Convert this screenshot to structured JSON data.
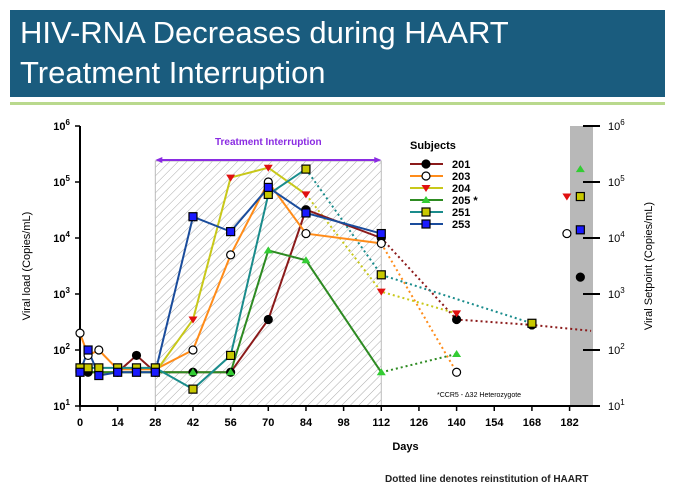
{
  "slide": {
    "title_line1": "HIV-RNA Decreases during HAART",
    "title_line2": "Treatment Interruption",
    "footnote": "Dotted line denotes reinstitution of HAART"
  },
  "chart_data": {
    "type": "line",
    "title": "",
    "xlabel": "Days",
    "ylabel": "Viral load (Copies/mL)",
    "y2label": "Viral Setpoint (Copies/mL)",
    "yscale": "log",
    "ylim": [
      10,
      1000000
    ],
    "xlim": [
      0,
      190
    ],
    "x_ticks": [
      0,
      14,
      28,
      42,
      56,
      70,
      84,
      98,
      112,
      126,
      140,
      154,
      168,
      182
    ],
    "y_ticks": [
      {
        "base": "10",
        "exp": "1"
      },
      {
        "base": "10",
        "exp": "2"
      },
      {
        "base": "10",
        "exp": "3"
      },
      {
        "base": "10",
        "exp": "4"
      },
      {
        "base": "10",
        "exp": "5"
      },
      {
        "base": "10",
        "exp": "6"
      }
    ],
    "interruption": {
      "label": "Treatment Interruption",
      "start": 28,
      "end": 112,
      "color": "#8a2be2"
    },
    "legend_title": "Subjects",
    "legend_position": "top-right",
    "annotation": "*CCR5 - Δ32 Heterozygote",
    "series": [
      {
        "name": "201",
        "line": "#8b1a1a",
        "marker": "circle",
        "fill": "#000000",
        "points": [
          [
            0,
            40
          ],
          [
            3,
            40
          ],
          [
            7,
            40
          ],
          [
            14,
            40
          ],
          [
            21,
            80
          ],
          [
            28,
            40
          ],
          [
            42,
            40
          ],
          [
            56,
            40
          ],
          [
            70,
            350
          ],
          [
            84,
            32000
          ],
          [
            112,
            10000
          ]
        ],
        "dotted": [
          [
            112,
            10000
          ],
          [
            140,
            350
          ],
          [
            168,
            280
          ],
          [
            190,
            220
          ]
        ],
        "setpoint": [
          186,
          2000
        ]
      },
      {
        "name": "203",
        "line": "#ff8c1a",
        "marker": "circle",
        "fill": "#ffffff",
        "points": [
          [
            0,
            200
          ],
          [
            3,
            80
          ],
          [
            7,
            100
          ],
          [
            14,
            45
          ],
          [
            21,
            45
          ],
          [
            28,
            45
          ],
          [
            42,
            100
          ],
          [
            56,
            5000
          ],
          [
            70,
            100000
          ],
          [
            84,
            12000
          ],
          [
            112,
            8000
          ]
        ],
        "dotted": [
          [
            112,
            8000
          ],
          [
            140,
            40
          ]
        ],
        "setpoint": [
          181,
          12000
        ]
      },
      {
        "name": "204",
        "line": "#c8c81a",
        "marker": "triangle-down",
        "fill": "#e01010",
        "points": [
          [
            0,
            40
          ],
          [
            7,
            40
          ],
          [
            14,
            40
          ],
          [
            21,
            40
          ],
          [
            28,
            40
          ],
          [
            42,
            350
          ],
          [
            56,
            120000
          ],
          [
            70,
            180000
          ],
          [
            84,
            60000
          ]
        ],
        "dotted": [
          [
            84,
            60000
          ],
          [
            112,
            1100
          ],
          [
            140,
            450
          ]
        ],
        "setpoint": [
          181,
          55000
        ]
      },
      {
        "name": "205 *",
        "line": "#2e8b22",
        "marker": "triangle-up",
        "fill": "#33cc33",
        "points": [
          [
            0,
            40
          ],
          [
            7,
            40
          ],
          [
            14,
            40
          ],
          [
            21,
            40
          ],
          [
            28,
            40
          ],
          [
            42,
            40
          ],
          [
            56,
            40
          ],
          [
            70,
            6000
          ],
          [
            84,
            4000
          ],
          [
            112,
            40
          ]
        ],
        "dotted": [
          [
            112,
            40
          ],
          [
            140,
            85
          ]
        ],
        "setpoint": [
          186,
          170000
        ]
      },
      {
        "name": "251",
        "line": "#1a8c8c",
        "marker": "square",
        "fill": "#c8c800",
        "points": [
          [
            0,
            48
          ],
          [
            3,
            48
          ],
          [
            7,
            48
          ],
          [
            14,
            48
          ],
          [
            21,
            48
          ],
          [
            28,
            48
          ],
          [
            42,
            20
          ],
          [
            56,
            80
          ],
          [
            70,
            60000
          ],
          [
            84,
            170000
          ]
        ],
        "dotted": [
          [
            84,
            170000
          ],
          [
            112,
            2200
          ],
          [
            168,
            300
          ]
        ],
        "setpoint": [
          186,
          55000
        ]
      },
      {
        "name": "253",
        "line": "#1a4c9c",
        "marker": "square",
        "fill": "#1a1aff",
        "points": [
          [
            0,
            40
          ],
          [
            3,
            100
          ],
          [
            7,
            35
          ],
          [
            14,
            40
          ],
          [
            21,
            40
          ],
          [
            28,
            40
          ],
          [
            42,
            24000
          ],
          [
            56,
            13000
          ],
          [
            70,
            80000
          ],
          [
            84,
            28000
          ],
          [
            112,
            12000
          ]
        ],
        "dotted": [],
        "setpoint": [
          186,
          14000
        ]
      }
    ]
  }
}
